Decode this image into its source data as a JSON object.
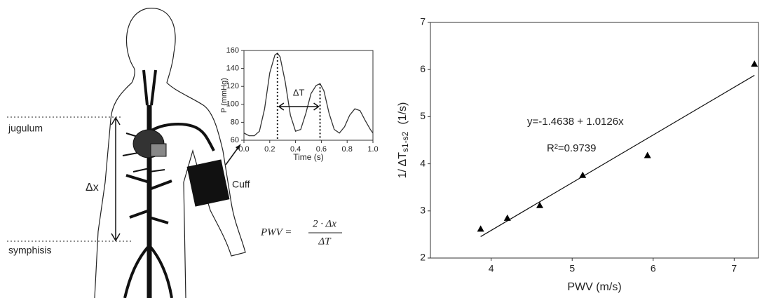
{
  "illustration": {
    "labels": {
      "jugulum": "jugulum",
      "symphisis": "symphisis",
      "delta_x": "Δx",
      "cuff": "Cuff"
    },
    "formula": {
      "lhs": "PWV =",
      "numerator": "2 · Δx",
      "denominator": "ΔT"
    }
  },
  "chart_data": [
    {
      "type": "line",
      "xlabel": "Time (s)",
      "ylabel": "P (mmHg)",
      "annotation": "ΔT",
      "x": [
        0,
        0.04,
        0.08,
        0.12,
        0.16,
        0.2,
        0.24,
        0.26,
        0.28,
        0.32,
        0.36,
        0.4,
        0.44,
        0.48,
        0.52,
        0.56,
        0.59,
        0.62,
        0.66,
        0.7,
        0.74,
        0.78,
        0.82,
        0.86,
        0.9,
        0.94,
        0.98,
        1.0
      ],
      "values": [
        68,
        65,
        65,
        70,
        95,
        135,
        155,
        157,
        153,
        125,
        88,
        70,
        72,
        90,
        112,
        121,
        123,
        115,
        90,
        72,
        68,
        75,
        88,
        95,
        93,
        82,
        72,
        68
      ],
      "color": "#333333",
      "xlim": [
        0,
        1
      ],
      "xticks": [
        {
          "value": 0,
          "label": "0.0"
        },
        0.2,
        0.4,
        0.6,
        0.8,
        {
          "value": 1,
          "label": "1.0"
        }
      ],
      "ylim": [
        60,
        160
      ],
      "yticks": [
        60,
        80,
        100,
        120,
        140,
        160
      ]
    },
    {
      "type": "scatter",
      "xlabel": "PWV (m/s)",
      "ylabel": "1/ ΔT",
      "ylabel_sub": "s1-s2",
      "ylabel_unit": "(1/s)",
      "x": [
        3.87,
        4.2,
        4.6,
        5.13,
        5.93,
        7.25
      ],
      "values": [
        2.62,
        2.85,
        3.12,
        3.76,
        4.18,
        6.12
      ],
      "color": "#000000",
      "fit": {
        "intercept": -1.4638,
        "slope": 1.0126,
        "equation": "y=-1.4638 + 1.0126x",
        "r2_label": "R²=0.9739"
      },
      "xlim": [
        3.25,
        7.3
      ],
      "xticks": [
        4,
        5,
        6,
        7
      ],
      "ylim": [
        2,
        7
      ],
      "yticks": [
        2,
        3,
        4,
        5,
        6,
        7
      ]
    }
  ]
}
